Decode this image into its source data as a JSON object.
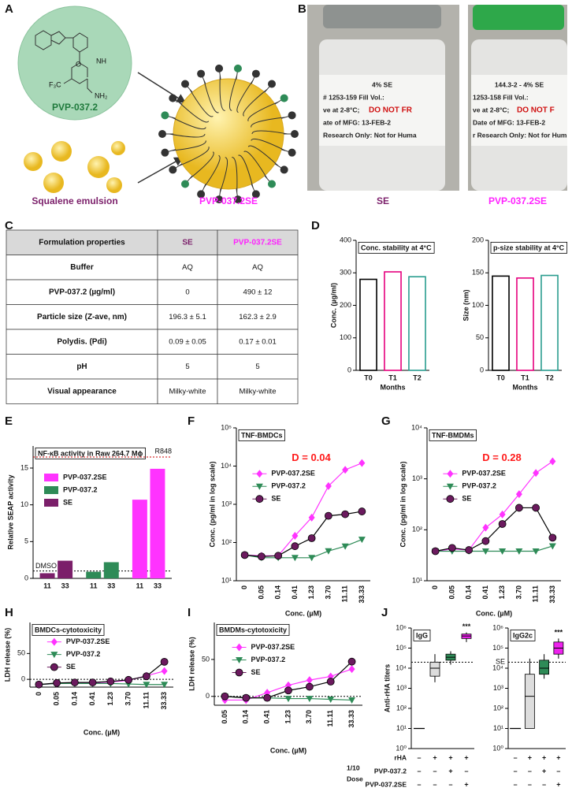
{
  "panel_labels": [
    "A",
    "B",
    "C",
    "D",
    "E",
    "F",
    "G",
    "H",
    "I",
    "J"
  ],
  "panel_a": {
    "molecule_labels": [
      "NH",
      "O",
      "F₃C",
      "NH₂"
    ],
    "compound": "PVP-037.2",
    "emulsion": "Squalene emulsion",
    "formulation": "PVP-037.2SE"
  },
  "panel_b": {
    "vials": [
      {
        "label_lines": [
          "4% SE",
          "# 1253-159   Fill Vol.:",
          "ve at 2-8°C;",
          "ate of MFG: 13-FEB-2",
          "Research Only: Not for Huma"
        ],
        "warning": "DO NOT FR",
        "caption": "SE"
      },
      {
        "label_lines": [
          "144.3-2 - 4% SE",
          "1253-158   Fill Vol.:",
          "ve at 2-8°C;",
          "Date of MFG: 13-FEB-2",
          "r Research Only: Not for Hum"
        ],
        "warning": "DO NOT F",
        "caption": "PVP-037.2SE"
      }
    ]
  },
  "table": {
    "header": [
      "Formulation properties",
      "SE",
      "PVP-037.2SE"
    ],
    "rows": [
      [
        "Buffer",
        "AQ",
        "AQ"
      ],
      [
        "PVP-037.2 (µg/ml)",
        "0",
        "490 ± 12"
      ],
      [
        "Particle size (Z-ave, nm)",
        "196.3 ± 5.1",
        "162.3 ± 2.9"
      ],
      [
        "Polydis. (Pdi)",
        "0.09 ± 0.05",
        "0.17 ± 0.01"
      ],
      [
        "pH",
        "5",
        "5"
      ],
      [
        "Visual appearance",
        "Milky-white",
        "Milky-white"
      ]
    ]
  },
  "j_conditions": {
    "rows": [
      {
        "label": "rHA",
        "signs": [
          "–",
          "+",
          "+",
          "+"
        ]
      },
      {
        "label": "PVP-037.2",
        "signs": [
          "–",
          "–",
          "+",
          "–"
        ]
      },
      {
        "label": "PVP-037.2SE",
        "signs": [
          "–",
          "–",
          "–",
          "+"
        ]
      }
    ],
    "dose_label": [
      "1/10",
      "Dose"
    ]
  },
  "chart_data": [
    {
      "type": "bar",
      "title": "Conc. stability at 4°C",
      "ylabel": "Conc. (µg/ml)",
      "xlabel": "Months",
      "categories": [
        "T0",
        "T1",
        "T2"
      ],
      "values": [
        280,
        303,
        288
      ],
      "colors": [
        "#000000",
        "#e6007e",
        "#2a9d8f"
      ],
      "ylim": [
        0,
        400
      ],
      "yticks": [
        0,
        100,
        200,
        300,
        400
      ]
    },
    {
      "type": "bar",
      "title": "p-size stability at 4°C",
      "ylabel": "Size (nm)",
      "xlabel": "Months",
      "categories": [
        "T0",
        "T1",
        "T2"
      ],
      "values": [
        145,
        142,
        146
      ],
      "colors": [
        "#000000",
        "#e6007e",
        "#2a9d8f"
      ],
      "ylim": [
        0,
        200
      ],
      "yticks": [
        0,
        50,
        100,
        150,
        200
      ]
    },
    {
      "type": "bar",
      "title": "NF-κB activity in Raw 264.7 Mϕ",
      "ylabel": "Relative SEAP activity",
      "categories": [
        "11",
        "33",
        "11",
        "33",
        "11",
        "33"
      ],
      "series": [
        {
          "name": "PVP-037.2SE",
          "color": "#ff33ff",
          "values": [
            null,
            null,
            null,
            null,
            10.7,
            14.9
          ]
        },
        {
          "name": "PVP-037.2",
          "color": "#2e8b57",
          "values": [
            null,
            null,
            0.9,
            2.2,
            null,
            null
          ]
        },
        {
          "name": "SE",
          "color": "#7b1f6a",
          "values": [
            0.7,
            2.4,
            null,
            null,
            null,
            null
          ]
        }
      ],
      "ylim": [
        0,
        18
      ],
      "yticks": [
        0,
        5,
        10,
        15
      ],
      "reference_lines": [
        {
          "value": 16.5,
          "label": "R848",
          "color": "#cc0000"
        },
        {
          "value": 1,
          "label": "DMSO",
          "color": "#000000"
        }
      ]
    },
    {
      "type": "line",
      "title": "TNF-BMDCs",
      "annotation": "D = 0.04",
      "annotation_color": "#ff1a1a",
      "ylabel": "Conc. (pg/ml in log scale)",
      "xlabel": "Conc. (µM)",
      "categories": [
        "0",
        "0.05",
        "0.14",
        "0.41",
        "1.23",
        "3.70",
        "11.11",
        "33.33"
      ],
      "log_y": true,
      "ylim": [
        10,
        100000
      ],
      "yticks": [
        {
          "value": 10,
          "label": "10¹"
        },
        {
          "value": 100,
          "label": "10²"
        },
        {
          "value": 1000,
          "label": "10³"
        },
        {
          "value": 10000,
          "label": "10⁴"
        },
        {
          "value": 100000,
          "label": "10⁵"
        }
      ],
      "series": [
        {
          "name": "PVP-037.2SE",
          "color": "#ff33ff",
          "marker": "diamond",
          "values": [
            47,
            45,
            45,
            150,
            450,
            3000,
            8000,
            12000
          ]
        },
        {
          "name": "PVP-037.2",
          "color": "#2e8b57",
          "marker": "triangle-down",
          "values": [
            47,
            40,
            40,
            40,
            40,
            60,
            80,
            120
          ]
        },
        {
          "name": "SE",
          "color": "#6b1a5e",
          "marker": "circle",
          "values": [
            47,
            43,
            45,
            80,
            130,
            500,
            550,
            650
          ]
        }
      ]
    },
    {
      "type": "line",
      "title": "TNF-BMDMs",
      "annotation": "D = 0.28",
      "annotation_color": "#ff1a1a",
      "ylabel": "Conc. (pg/ml in log scale)",
      "xlabel": "Conc. (µM)",
      "categories": [
        "0",
        "0.05",
        "0.14",
        "0.41",
        "1.23",
        "3.70",
        "11.11",
        "33.33"
      ],
      "log_y": true,
      "ylim": [
        10,
        10000
      ],
      "yticks": [
        {
          "value": 10,
          "label": "10¹"
        },
        {
          "value": 100,
          "label": "10²"
        },
        {
          "value": 1000,
          "label": "10³"
        },
        {
          "value": 10000,
          "label": "10⁴"
        }
      ],
      "series": [
        {
          "name": "PVP-037.2SE",
          "color": "#ff33ff",
          "marker": "diamond",
          "values": [
            38,
            42,
            40,
            110,
            200,
            500,
            1300,
            2200
          ]
        },
        {
          "name": "PVP-037.2",
          "color": "#2e8b57",
          "marker": "triangle-down",
          "values": [
            38,
            38,
            38,
            38,
            38,
            38,
            38,
            48
          ]
        },
        {
          "name": "SE",
          "color": "#6b1a5e",
          "marker": "circle",
          "values": [
            38,
            44,
            40,
            60,
            130,
            270,
            270,
            70
          ]
        }
      ]
    },
    {
      "type": "line",
      "title": "BMDCs-cytotoxicity",
      "ylabel": "LDH release (%)",
      "xlabel": "Conc. (µM)",
      "categories": [
        "0",
        "0.05",
        "0.14",
        "0.41",
        "1.23",
        "3.70",
        "11.11",
        "33.33"
      ],
      "ylim": [
        -15,
        110
      ],
      "yticks": [
        0,
        50
      ],
      "reference_lines": [
        {
          "value": 0,
          "color": "#000000"
        }
      ],
      "series": [
        {
          "name": "PVP-037.2SE",
          "color": "#ff33ff",
          "marker": "diamond",
          "values": [
            -10,
            -8,
            -7,
            -7,
            -5,
            -2,
            7,
            16
          ]
        },
        {
          "name": "PVP-037.2",
          "color": "#2e8b57",
          "marker": "triangle-down",
          "values": [
            -10,
            -8,
            -8,
            -8,
            -8,
            -9,
            -10,
            -10
          ]
        },
        {
          "name": "SE",
          "color": "#6b1a5e",
          "marker": "circle",
          "values": [
            -10,
            -7,
            -6,
            -6,
            -4,
            -1,
            6,
            34
          ]
        }
      ]
    },
    {
      "type": "line",
      "title": "BMDMs-cytotoxicity",
      "ylabel": "LDH release (%)",
      "xlabel": "Conc. (µM)",
      "categories": [
        "0.05",
        "0.14",
        "0.41",
        "1.23",
        "3.70",
        "11.11",
        "33.33"
      ],
      "ylim": [
        -12,
        100
      ],
      "yticks": [
        0,
        50
      ],
      "reference_lines": [
        {
          "value": 0,
          "color": "#000000"
        }
      ],
      "series": [
        {
          "name": "PVP-037.2SE",
          "color": "#ff33ff",
          "marker": "diamond",
          "values": [
            -5,
            -5,
            5,
            15,
            22,
            27,
            37
          ]
        },
        {
          "name": "PVP-037.2",
          "color": "#2e8b57",
          "marker": "triangle-down",
          "values": [
            0,
            -2,
            -2,
            -3,
            -3,
            -4,
            -5
          ]
        },
        {
          "name": "SE",
          "color": "#6b1a5e",
          "marker": "circle",
          "values": [
            0,
            -2,
            -2,
            8,
            13,
            20,
            47
          ]
        }
      ]
    },
    {
      "type": "box",
      "title": "IgG",
      "ylabel": "Anti-rHA titers",
      "log_y": true,
      "ylim": [
        1,
        1000000
      ],
      "yticks": [
        {
          "value": 1,
          "label": "10⁰"
        },
        {
          "value": 10,
          "label": "10¹"
        },
        {
          "value": 100,
          "label": "10²"
        },
        {
          "value": 1000,
          "label": "10³"
        },
        {
          "value": 10000,
          "label": "10⁴"
        },
        {
          "value": 100000,
          "label": "10⁵"
        },
        {
          "value": 1000000,
          "label": "10⁶"
        }
      ],
      "boxes": [
        {
          "min": 10,
          "q1": 10,
          "median": 10,
          "q3": 10,
          "max": 10,
          "color": "#dddddd"
        },
        {
          "min": 2000,
          "q1": 4000,
          "median": 10000,
          "q3": 20000,
          "max": 50000,
          "color": "#dddddd"
        },
        {
          "min": 15000,
          "q1": 25000,
          "median": 35000,
          "q3": 50000,
          "max": 70000,
          "color": "#2e8b57"
        },
        {
          "min": 200000,
          "q1": 300000,
          "median": 400000,
          "q3": 500000,
          "max": 600000,
          "color": "#ee22ee"
        }
      ],
      "reference_lines": [
        {
          "value": 20000,
          "color": "#000000"
        }
      ],
      "annotations": [
        {
          "text": "***",
          "box": 3
        }
      ]
    },
    {
      "type": "box",
      "title": "IgG2c",
      "log_y": true,
      "ylim": [
        1,
        1000000
      ],
      "yticks": [
        {
          "value": 1,
          "label": "10⁰"
        },
        {
          "value": 10,
          "label": "10¹"
        },
        {
          "value": 100,
          "label": "10²"
        },
        {
          "value": 1000,
          "label": "10³"
        },
        {
          "value": 10000,
          "label": "10⁴"
        },
        {
          "value": 100000,
          "label": "10⁵"
        },
        {
          "value": 1000000,
          "label": "10⁶"
        }
      ],
      "boxes": [
        {
          "min": 10,
          "q1": 10,
          "median": 10,
          "q3": 10,
          "max": 10,
          "color": "#dddddd"
        },
        {
          "min": 10,
          "q1": 10,
          "median": 400,
          "q3": 5000,
          "max": 30000,
          "color": "#dddddd"
        },
        {
          "min": 3000,
          "q1": 5000,
          "median": 10000,
          "q3": 25000,
          "max": 50000,
          "color": "#2e8b57"
        },
        {
          "min": 30000,
          "q1": 50000,
          "median": 100000,
          "q3": 200000,
          "max": 300000,
          "color": "#ee22ee"
        }
      ],
      "reference_lines": [
        {
          "value": 20000,
          "label": "SE",
          "color": "#000000"
        }
      ],
      "annotations": [
        {
          "text": "***",
          "box": 3
        }
      ]
    }
  ]
}
